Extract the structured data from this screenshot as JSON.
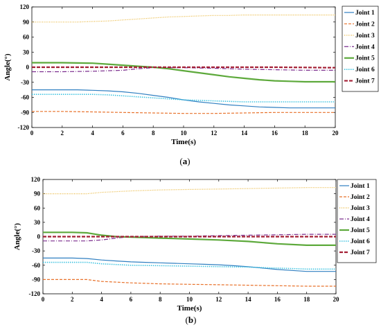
{
  "chart_data": [
    {
      "type": "line",
      "caption_prefix": "(",
      "caption_letter": "a",
      "caption_suffix": ")",
      "xlabel": "Time(s)",
      "ylabel": "Angle(°)",
      "xlim": [
        0,
        20
      ],
      "ylim": [
        -120,
        120
      ],
      "xticks": [
        0,
        2,
        4,
        6,
        8,
        10,
        12,
        14,
        16,
        18,
        20
      ],
      "yticks": [
        -120,
        -90,
        -60,
        -30,
        0,
        30,
        60,
        90,
        120
      ],
      "grid": false,
      "legend_position": "top-right",
      "series": [
        {
          "name": "Joint 1",
          "color": "#2f7fc1",
          "dash": "",
          "width": 1.2,
          "x": [
            0,
            1,
            2,
            3,
            4,
            5,
            6,
            7,
            8,
            9,
            10,
            11,
            12,
            13,
            14,
            15,
            16,
            17,
            18,
            19,
            20
          ],
          "y": [
            -45,
            -45,
            -45,
            -45,
            -46,
            -47,
            -49,
            -52,
            -56,
            -60,
            -65,
            -69,
            -72,
            -75,
            -77,
            -79,
            -80,
            -81,
            -81,
            -81,
            -81
          ]
        },
        {
          "name": "Joint 2",
          "color": "#e8712a",
          "dash": "4,2",
          "width": 1.2,
          "x": [
            0,
            2,
            4,
            6,
            8,
            10,
            12,
            14,
            16,
            18,
            20
          ],
          "y": [
            -88,
            -88,
            -89,
            -90,
            -91,
            -92,
            -92,
            -91,
            -90,
            -90,
            -90
          ]
        },
        {
          "name": "Joint 3",
          "color": "#e9b63a",
          "dash": "1,1.5",
          "width": 1.2,
          "x": [
            0,
            2,
            3,
            4,
            5,
            6,
            7,
            8,
            9,
            10,
            11,
            12,
            13,
            14,
            16,
            18,
            20
          ],
          "y": [
            90,
            90,
            90,
            91,
            92,
            94,
            96,
            98,
            100,
            101,
            102,
            103,
            103,
            104,
            104,
            104,
            104
          ]
        },
        {
          "name": "Joint 4",
          "color": "#7b2d8e",
          "dash": "6,2,1,2",
          "width": 1.2,
          "x": [
            0,
            2,
            4,
            6,
            7,
            8,
            10,
            12,
            14,
            16,
            18,
            20
          ],
          "y": [
            -9,
            -9,
            -8,
            -6,
            -3,
            -1,
            -1,
            -2,
            -4,
            -5,
            -6,
            -6
          ]
        },
        {
          "name": "Joint 5",
          "color": "#5da93b",
          "dash": "",
          "width": 2.2,
          "x": [
            0,
            2,
            4,
            5,
            6,
            7,
            8,
            9,
            10,
            11,
            12,
            13,
            14,
            15,
            16,
            17,
            18,
            19,
            20
          ],
          "y": [
            9,
            9,
            8,
            6,
            4,
            2,
            0,
            -3,
            -7,
            -11,
            -15,
            -19,
            -22,
            -25,
            -27,
            -28,
            -29,
            -29,
            -29
          ]
        },
        {
          "name": "Joint 6",
          "color": "#3ec3e0",
          "dash": "1.5,1.5",
          "width": 1.6,
          "x": [
            0,
            2,
            4,
            5,
            6,
            7,
            8,
            9,
            10,
            11,
            12,
            13,
            14,
            15,
            16,
            18,
            20
          ],
          "y": [
            -54,
            -54,
            -54,
            -55,
            -57,
            -59,
            -61,
            -63,
            -65,
            -66,
            -67,
            -68,
            -69,
            -69,
            -69,
            -69,
            -69
          ]
        },
        {
          "name": "Joint 7",
          "color": "#a31f34",
          "dash": "5,2",
          "width": 2.2,
          "x": [
            0,
            4,
            8,
            12,
            16,
            20
          ],
          "y": [
            0,
            0,
            0,
            0,
            0,
            -1
          ]
        }
      ]
    },
    {
      "type": "line",
      "caption_prefix": "(",
      "caption_letter": "b",
      "caption_suffix": ")",
      "xlabel": "Time(s)",
      "ylabel": "Angle(°)",
      "xlim": [
        0,
        20
      ],
      "ylim": [
        -120,
        120
      ],
      "xticks": [
        0,
        2,
        4,
        6,
        8,
        10,
        12,
        14,
        16,
        18,
        20
      ],
      "yticks": [
        -120,
        -90,
        -60,
        -30,
        0,
        30,
        60,
        90,
        120
      ],
      "grid": false,
      "legend_position": "top-right",
      "series": [
        {
          "name": "Joint 1",
          "color": "#2f7fc1",
          "dash": "",
          "width": 1.2,
          "x": [
            0,
            1,
            2,
            3,
            4,
            5,
            6,
            7,
            8,
            9,
            10,
            11,
            12,
            13,
            14,
            15,
            16,
            17,
            18,
            19,
            20
          ],
          "y": [
            -45,
            -45,
            -45,
            -46,
            -49,
            -51,
            -53,
            -54,
            -55,
            -56,
            -57,
            -58,
            -59,
            -61,
            -63,
            -66,
            -69,
            -71,
            -73,
            -73,
            -73
          ]
        },
        {
          "name": "Joint 2",
          "color": "#e8712a",
          "dash": "4,2",
          "width": 1.2,
          "x": [
            0,
            2,
            3,
            4,
            6,
            8,
            10,
            12,
            14,
            16,
            18,
            20
          ],
          "y": [
            -90,
            -90,
            -90,
            -94,
            -97,
            -99,
            -100,
            -101,
            -102,
            -103,
            -104,
            -104
          ]
        },
        {
          "name": "Joint 3",
          "color": "#e9b63a",
          "dash": "1,1.5",
          "width": 1.2,
          "x": [
            0,
            2,
            3,
            4,
            6,
            8,
            10,
            12,
            14,
            16,
            18,
            20
          ],
          "y": [
            90,
            90,
            90,
            93,
            96,
            98,
            99,
            100,
            101,
            102,
            103,
            103
          ]
        },
        {
          "name": "Joint 4",
          "color": "#7b2d8e",
          "dash": "6,2,1,2",
          "width": 1.2,
          "x": [
            0,
            2,
            3,
            4,
            5,
            6,
            8,
            10,
            12,
            14,
            16,
            18,
            20
          ],
          "y": [
            -9,
            -9,
            -9,
            -7,
            -3,
            0,
            1,
            1,
            2,
            3,
            4,
            5,
            5
          ]
        },
        {
          "name": "Joint 5",
          "color": "#5da93b",
          "dash": "",
          "width": 2.2,
          "x": [
            0,
            2,
            3,
            4,
            5,
            6,
            8,
            10,
            12,
            14,
            16,
            18,
            20
          ],
          "y": [
            9,
            9,
            8,
            3,
            0,
            -1,
            -3,
            -5,
            -7,
            -10,
            -15,
            -18,
            -18
          ]
        },
        {
          "name": "Joint 6",
          "color": "#3ec3e0",
          "dash": "1.5,1.5",
          "width": 1.6,
          "x": [
            0,
            2,
            3,
            4,
            6,
            8,
            10,
            12,
            14,
            16,
            18,
            20
          ],
          "y": [
            -54,
            -54,
            -54,
            -57,
            -60,
            -61,
            -62,
            -63,
            -64,
            -66,
            -68,
            -68
          ]
        },
        {
          "name": "Joint 7",
          "color": "#a31f34",
          "dash": "5,2",
          "width": 2.2,
          "x": [
            0,
            4,
            8,
            12,
            16,
            20
          ],
          "y": [
            0,
            0,
            0,
            0,
            0,
            0
          ]
        }
      ]
    }
  ]
}
